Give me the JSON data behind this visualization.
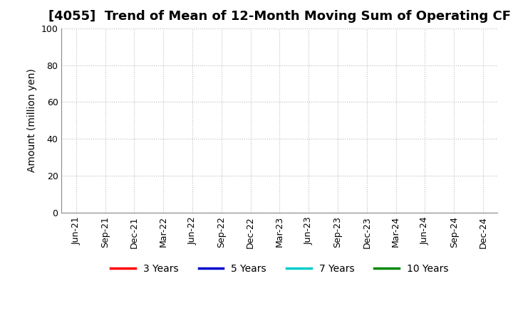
{
  "title": "[4055]  Trend of Mean of 12-Month Moving Sum of Operating CF",
  "ylabel": "Amount (million yen)",
  "ylim": [
    0,
    100
  ],
  "yticks": [
    0,
    20,
    40,
    60,
    80,
    100
  ],
  "background_color": "#ffffff",
  "grid_color": "#bbbbbb",
  "x_tick_labels": [
    "Jun-21",
    "Sep-21",
    "Dec-21",
    "Mar-22",
    "Jun-22",
    "Sep-22",
    "Dec-22",
    "Mar-23",
    "Jun-23",
    "Sep-23",
    "Dec-23",
    "Mar-24",
    "Jun-24",
    "Sep-24",
    "Dec-24"
  ],
  "legend_entries": [
    {
      "label": "3 Years",
      "color": "#ff0000"
    },
    {
      "label": "5 Years",
      "color": "#0000cc"
    },
    {
      "label": "7 Years",
      "color": "#00cccc"
    },
    {
      "label": "10 Years",
      "color": "#008800"
    }
  ],
  "title_fontsize": 13,
  "axis_label_fontsize": 10,
  "tick_fontsize": 9,
  "legend_fontsize": 10
}
